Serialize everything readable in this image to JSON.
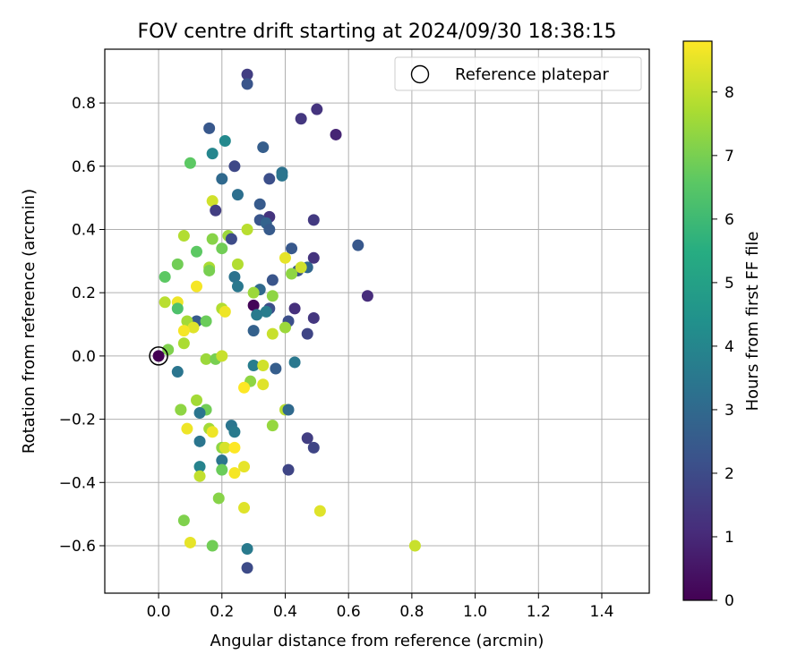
{
  "chart_data": {
    "type": "scatter",
    "title": "FOV centre drift starting at 2024/09/30 18:38:15",
    "xlabel": "Angular distance from reference (arcmin)",
    "ylabel": "Rotation from reference (arcmin)",
    "xlim": [
      -0.17,
      1.55
    ],
    "ylim": [
      -0.75,
      0.97
    ],
    "xticks": [
      "0.0",
      "0.2",
      "0.4",
      "0.6",
      "0.8",
      "1.0",
      "1.2",
      "1.4"
    ],
    "yticks": [
      "−0.6",
      "−0.4",
      "−0.2",
      "0.0",
      "0.2",
      "0.4",
      "0.6",
      "0.8"
    ],
    "grid": true,
    "legend": {
      "position": "top-right",
      "entries": [
        "Reference platepar"
      ]
    },
    "colorbar": {
      "label": "Hours from first FF file",
      "range": [
        0,
        8.8
      ],
      "ticks": [
        "0",
        "1",
        "2",
        "3",
        "4",
        "5",
        "6",
        "7",
        "8"
      ],
      "colormap": "viridis"
    },
    "reference_point": {
      "x": 0.0,
      "y": 0.0
    },
    "points": [
      {
        "x": 0.28,
        "y": 0.89,
        "h": 1.6
      },
      {
        "x": 0.28,
        "y": 0.86,
        "h": 2.3
      },
      {
        "x": 0.5,
        "y": 0.78,
        "h": 1.3
      },
      {
        "x": 0.45,
        "y": 0.75,
        "h": 1.4
      },
      {
        "x": 0.16,
        "y": 0.72,
        "h": 2.4
      },
      {
        "x": 0.56,
        "y": 0.7,
        "h": 0.9
      },
      {
        "x": 0.21,
        "y": 0.68,
        "h": 4.1
      },
      {
        "x": 0.33,
        "y": 0.66,
        "h": 2.6
      },
      {
        "x": 0.17,
        "y": 0.64,
        "h": 4.0
      },
      {
        "x": 0.1,
        "y": 0.61,
        "h": 6.6
      },
      {
        "x": 0.24,
        "y": 0.6,
        "h": 1.9
      },
      {
        "x": 0.39,
        "y": 0.58,
        "h": 3.3
      },
      {
        "x": 0.39,
        "y": 0.57,
        "h": 3.4
      },
      {
        "x": 0.35,
        "y": 0.56,
        "h": 2.1
      },
      {
        "x": 0.2,
        "y": 0.56,
        "h": 3.0
      },
      {
        "x": 0.25,
        "y": 0.51,
        "h": 3.2
      },
      {
        "x": 0.17,
        "y": 0.49,
        "h": 8.2
      },
      {
        "x": 0.32,
        "y": 0.48,
        "h": 2.5
      },
      {
        "x": 0.18,
        "y": 0.46,
        "h": 1.6
      },
      {
        "x": 0.35,
        "y": 0.44,
        "h": 1.3
      },
      {
        "x": 0.32,
        "y": 0.43,
        "h": 2.3
      },
      {
        "x": 0.34,
        "y": 0.42,
        "h": 2.8
      },
      {
        "x": 0.49,
        "y": 0.43,
        "h": 1.5
      },
      {
        "x": 0.35,
        "y": 0.4,
        "h": 2.5
      },
      {
        "x": 0.28,
        "y": 0.4,
        "h": 7.9
      },
      {
        "x": 0.08,
        "y": 0.38,
        "h": 7.8
      },
      {
        "x": 0.22,
        "y": 0.38,
        "h": 7.5
      },
      {
        "x": 0.23,
        "y": 0.37,
        "h": 2.0
      },
      {
        "x": 0.17,
        "y": 0.37,
        "h": 7.2
      },
      {
        "x": 0.42,
        "y": 0.34,
        "h": 2.4
      },
      {
        "x": 0.2,
        "y": 0.34,
        "h": 6.9
      },
      {
        "x": 0.63,
        "y": 0.35,
        "h": 2.4
      },
      {
        "x": 0.12,
        "y": 0.33,
        "h": 6.6
      },
      {
        "x": 0.4,
        "y": 0.31,
        "h": 8.5
      },
      {
        "x": 0.49,
        "y": 0.31,
        "h": 1.3
      },
      {
        "x": 0.06,
        "y": 0.29,
        "h": 6.9
      },
      {
        "x": 0.25,
        "y": 0.29,
        "h": 7.8
      },
      {
        "x": 0.16,
        "y": 0.28,
        "h": 7.7
      },
      {
        "x": 0.47,
        "y": 0.28,
        "h": 2.9
      },
      {
        "x": 0.44,
        "y": 0.27,
        "h": 2.2
      },
      {
        "x": 0.45,
        "y": 0.28,
        "h": 8.2
      },
      {
        "x": 0.16,
        "y": 0.27,
        "h": 7.0
      },
      {
        "x": 0.42,
        "y": 0.26,
        "h": 7.3
      },
      {
        "x": 0.02,
        "y": 0.25,
        "h": 6.6
      },
      {
        "x": 0.24,
        "y": 0.25,
        "h": 3.3
      },
      {
        "x": 0.36,
        "y": 0.24,
        "h": 2.3
      },
      {
        "x": 0.25,
        "y": 0.22,
        "h": 3.5
      },
      {
        "x": 0.12,
        "y": 0.22,
        "h": 8.7
      },
      {
        "x": 0.32,
        "y": 0.21,
        "h": 3.0
      },
      {
        "x": 0.3,
        "y": 0.2,
        "h": 7.5
      },
      {
        "x": 0.66,
        "y": 0.19,
        "h": 1.1
      },
      {
        "x": 0.36,
        "y": 0.19,
        "h": 7.3
      },
      {
        "x": 0.02,
        "y": 0.17,
        "h": 7.9
      },
      {
        "x": 0.06,
        "y": 0.17,
        "h": 8.6
      },
      {
        "x": 0.3,
        "y": 0.16,
        "h": 0.1
      },
      {
        "x": 0.06,
        "y": 0.15,
        "h": 6.3
      },
      {
        "x": 0.2,
        "y": 0.15,
        "h": 7.8
      },
      {
        "x": 0.21,
        "y": 0.14,
        "h": 8.6
      },
      {
        "x": 0.35,
        "y": 0.15,
        "h": 2.1
      },
      {
        "x": 0.34,
        "y": 0.14,
        "h": 3.7
      },
      {
        "x": 0.43,
        "y": 0.15,
        "h": 1.2
      },
      {
        "x": 0.31,
        "y": 0.13,
        "h": 3.6
      },
      {
        "x": 0.12,
        "y": 0.11,
        "h": 2.5
      },
      {
        "x": 0.09,
        "y": 0.11,
        "h": 7.6
      },
      {
        "x": 0.15,
        "y": 0.11,
        "h": 6.8
      },
      {
        "x": 0.41,
        "y": 0.11,
        "h": 2.1
      },
      {
        "x": 0.49,
        "y": 0.12,
        "h": 1.4
      },
      {
        "x": 0.11,
        "y": 0.09,
        "h": 8.4
      },
      {
        "x": 0.08,
        "y": 0.08,
        "h": 8.7
      },
      {
        "x": 0.4,
        "y": 0.09,
        "h": 7.5
      },
      {
        "x": 0.3,
        "y": 0.08,
        "h": 2.7
      },
      {
        "x": 0.47,
        "y": 0.07,
        "h": 1.8
      },
      {
        "x": 0.36,
        "y": 0.07,
        "h": 8.1
      },
      {
        "x": 0.08,
        "y": 0.04,
        "h": 7.7
      },
      {
        "x": 0.03,
        "y": 0.02,
        "h": 7.1
      },
      {
        "x": 0.15,
        "y": -0.01,
        "h": 7.5
      },
      {
        "x": 0.18,
        "y": -0.01,
        "h": 7.0
      },
      {
        "x": 0.2,
        "y": 0.0,
        "h": 8.1
      },
      {
        "x": 0.06,
        "y": -0.05,
        "h": 3.4
      },
      {
        "x": 0.3,
        "y": -0.03,
        "h": 3.7
      },
      {
        "x": 0.33,
        "y": -0.03,
        "h": 8.2
      },
      {
        "x": 0.43,
        "y": -0.02,
        "h": 3.5
      },
      {
        "x": 0.37,
        "y": -0.04,
        "h": 2.6
      },
      {
        "x": 0.29,
        "y": -0.08,
        "h": 7.3
      },
      {
        "x": 0.33,
        "y": -0.09,
        "h": 8.4
      },
      {
        "x": 0.27,
        "y": -0.1,
        "h": 8.8
      },
      {
        "x": 0.12,
        "y": -0.14,
        "h": 7.6
      },
      {
        "x": 0.07,
        "y": -0.17,
        "h": 7.8
      },
      {
        "x": 0.07,
        "y": -0.17,
        "h": 7.3
      },
      {
        "x": 0.15,
        "y": -0.17,
        "h": 6.9
      },
      {
        "x": 0.4,
        "y": -0.17,
        "h": 7.9
      },
      {
        "x": 0.41,
        "y": -0.17,
        "h": 3.0
      },
      {
        "x": 0.13,
        "y": -0.18,
        "h": 3.4
      },
      {
        "x": 0.09,
        "y": -0.23,
        "h": 8.6
      },
      {
        "x": 0.16,
        "y": -0.23,
        "h": 7.6
      },
      {
        "x": 0.17,
        "y": -0.24,
        "h": 8.6
      },
      {
        "x": 0.23,
        "y": -0.22,
        "h": 3.4
      },
      {
        "x": 0.36,
        "y": -0.22,
        "h": 7.4
      },
      {
        "x": 0.24,
        "y": -0.24,
        "h": 3.6
      },
      {
        "x": 0.47,
        "y": -0.26,
        "h": 1.6
      },
      {
        "x": 0.13,
        "y": -0.27,
        "h": 3.4
      },
      {
        "x": 0.2,
        "y": -0.29,
        "h": 7.3
      },
      {
        "x": 0.21,
        "y": -0.29,
        "h": 8.3
      },
      {
        "x": 0.24,
        "y": -0.29,
        "h": 8.8
      },
      {
        "x": 0.49,
        "y": -0.29,
        "h": 1.8
      },
      {
        "x": 0.2,
        "y": -0.33,
        "h": 3.4
      },
      {
        "x": 0.13,
        "y": -0.35,
        "h": 3.9
      },
      {
        "x": 0.27,
        "y": -0.35,
        "h": 8.5
      },
      {
        "x": 0.41,
        "y": -0.36,
        "h": 1.8
      },
      {
        "x": 0.2,
        "y": -0.36,
        "h": 6.8
      },
      {
        "x": 0.24,
        "y": -0.37,
        "h": 8.7
      },
      {
        "x": 0.13,
        "y": -0.38,
        "h": 8.0
      },
      {
        "x": 0.19,
        "y": -0.45,
        "h": 7.2
      },
      {
        "x": 0.27,
        "y": -0.48,
        "h": 8.4
      },
      {
        "x": 0.51,
        "y": -0.49,
        "h": 8.4
      },
      {
        "x": 0.08,
        "y": -0.52,
        "h": 7.1
      },
      {
        "x": 0.1,
        "y": -0.59,
        "h": 8.5
      },
      {
        "x": 0.17,
        "y": -0.6,
        "h": 6.9
      },
      {
        "x": 0.81,
        "y": -0.6,
        "h": 8.1
      },
      {
        "x": 0.28,
        "y": -0.61,
        "h": 3.6
      },
      {
        "x": 0.28,
        "y": -0.67,
        "h": 2.0
      }
    ]
  }
}
